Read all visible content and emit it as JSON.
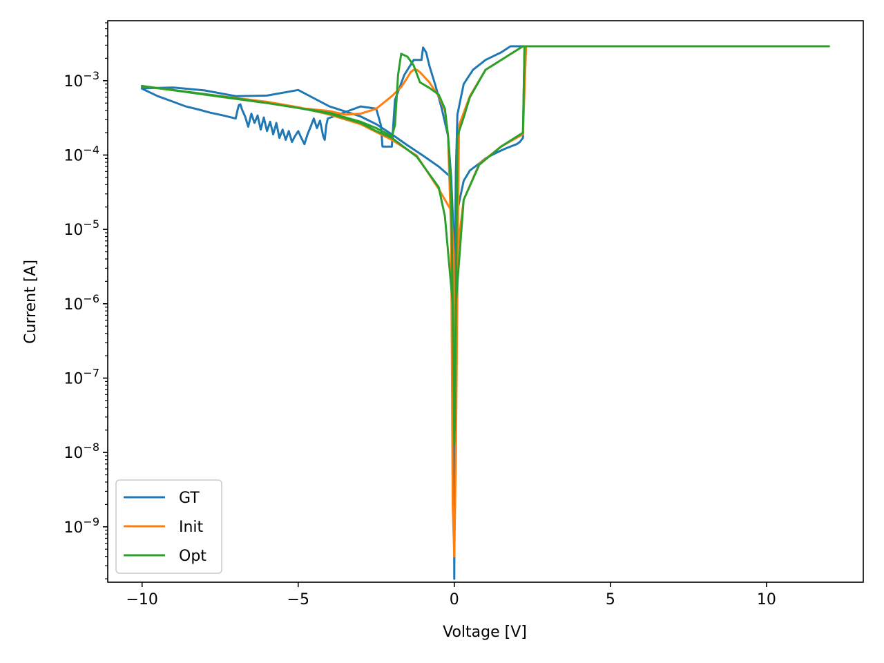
{
  "chart_data": {
    "type": "line",
    "xlabel": "Voltage [V]",
    "ylabel": "Current [A]",
    "yscale": "log",
    "xlim": [
      -11.1,
      13.1
    ],
    "ylim": [
      1.8e-10,
      0.0064
    ],
    "x_ticks": [
      -10,
      -5,
      0,
      5,
      10
    ],
    "x_tick_labels": [
      "−10",
      "−5",
      "0",
      "5",
      "10"
    ],
    "y_ticks": [
      1e-09,
      1e-08,
      1e-07,
      1e-06,
      1e-05,
      0.0001,
      0.001
    ],
    "y_tick_exponents": [
      "−9",
      "−8",
      "−7",
      "−6",
      "−5",
      "−4",
      "−3"
    ],
    "y_tick_base": "10",
    "grid": false,
    "legend_position": "bottom-left",
    "series": [
      {
        "name": "GT",
        "color": "#1f77b4",
        "x": [
          -10,
          -9.5,
          -9,
          -8.6,
          -8.2,
          -7.8,
          -7.4,
          -7,
          -6.95,
          -6.9,
          -6.85,
          -6.8,
          -6.7,
          -6.6,
          -6.5,
          -6.4,
          -6.3,
          -6.2,
          -6.1,
          -6,
          -5.9,
          -5.8,
          -5.7,
          -5.6,
          -5.5,
          -5.4,
          -5.3,
          -5.2,
          -5.1,
          -5,
          -4.9,
          -4.8,
          -4.7,
          -4.6,
          -4.5,
          -4.4,
          -4.3,
          -4.2,
          -4.15,
          -4.1,
          -4.05,
          -3,
          -2.5,
          -2.35,
          -2.3,
          -2.2,
          -2.1,
          -2,
          -1.9,
          -1.6,
          -1.3,
          -1.05,
          -1,
          -0.9,
          -0.8,
          -0.6,
          -0.4,
          -0.2,
          -0.1,
          -0.05,
          -0.02,
          0,
          0.02,
          0.05,
          0.1,
          0.3,
          0.6,
          1,
          1.5,
          1.8,
          2.1,
          2.2,
          2.25,
          2.2,
          2.1,
          2,
          1.7,
          1.5,
          1.2,
          1,
          0.8,
          0.5,
          0.3,
          0.1,
          0,
          -0.1,
          -0.5,
          -1,
          -1.5,
          -2,
          -2.5,
          -3,
          -4,
          -5,
          -6,
          -7,
          -8,
          -9,
          -10
        ],
        "y": [
          0.00078,
          0.00062,
          0.00052,
          0.00045,
          0.00041,
          0.00037,
          0.00034,
          0.00031,
          0.00039,
          0.00047,
          0.00048,
          0.00041,
          0.00033,
          0.00024,
          0.00036,
          0.00027,
          0.00034,
          0.00022,
          0.00032,
          0.00021,
          0.00028,
          0.00019,
          0.00027,
          0.00017,
          0.00022,
          0.00016,
          0.00021,
          0.00015,
          0.00018,
          0.00021,
          0.00017,
          0.00014,
          0.00019,
          0.00024,
          0.00031,
          0.00023,
          0.00029,
          0.00018,
          0.00016,
          0.00025,
          0.00031,
          0.00045,
          0.00042,
          0.00025,
          0.00013,
          0.00013,
          0.00013,
          0.00013,
          0.00055,
          0.0012,
          0.0019,
          0.0019,
          0.0028,
          0.0024,
          0.0016,
          0.00085,
          0.00042,
          0.00018,
          5e-05,
          6e-06,
          1e-07,
          2e-10,
          3e-06,
          6e-05,
          0.00035,
          0.0009,
          0.0014,
          0.0019,
          0.0024,
          0.0029,
          0.0029,
          0.0029,
          0.0029,
          0.00017,
          0.00015,
          0.00014,
          0.000125,
          0.000115,
          0.0001,
          9e-05,
          7.7e-05,
          6.2e-05,
          4.5e-05,
          1.8e-05,
          5e-06,
          5e-05,
          7e-05,
          9.8e-05,
          0.000135,
          0.00019,
          0.00026,
          0.00033,
          0.00045,
          0.00075,
          0.00063,
          0.00062,
          0.00074,
          0.00081,
          0.00079
        ]
      },
      {
        "name": "Init",
        "color": "#ff7f0e",
        "x": [
          -10,
          -9,
          -8,
          -7,
          -6,
          -5,
          -4,
          -3.5,
          -3,
          -2.5,
          -2,
          -1.7,
          -1.5,
          -1.4,
          -1.3,
          -1.2,
          -1.1,
          -0.8,
          -0.5,
          -0.3,
          -0.2,
          -0.1,
          -0.05,
          0,
          0.05,
          0.15,
          0.5,
          1,
          2.2,
          2.3,
          2.35,
          3,
          12,
          2.3,
          2.2,
          1.5,
          0.8,
          0.3,
          0.1,
          0.02,
          -0.02,
          -0.1,
          -0.5,
          -1.2,
          -2,
          -3,
          -4,
          -5,
          -6,
          -8,
          -10
        ],
        "y": [
          0.00084,
          0.00075,
          0.00065,
          0.00057,
          0.0005,
          0.00043,
          0.00039,
          0.00035,
          0.00036,
          0.00042,
          0.00062,
          0.00082,
          0.0011,
          0.0013,
          0.0014,
          0.0014,
          0.0013,
          0.00095,
          0.00062,
          0.0004,
          0.00018,
          8e-06,
          2e-09,
          4e-10,
          1e-08,
          0.00025,
          0.00062,
          0.0014,
          0.0029,
          0.0029,
          0.0029,
          0.0029,
          0.0029,
          0.0029,
          0.00019,
          0.00013,
          7.6e-05,
          2.5e-05,
          5e-06,
          6e-08,
          5e-06,
          1.8e-05,
          3.5e-05,
          9.8e-05,
          0.00016,
          0.00026,
          0.00035,
          0.00044,
          0.00052,
          0.00066,
          0.00084
        ]
      },
      {
        "name": "Opt",
        "color": "#2ca02c",
        "x": [
          -10,
          -9,
          -8,
          -7,
          -6,
          -5,
          -4,
          -3,
          -2.5,
          -2,
          -1.9,
          -1.8,
          -1.7,
          -1.5,
          -1.3,
          -1.1,
          -0.8,
          -0.5,
          -0.3,
          -0.2,
          -0.1,
          -0.02,
          0,
          0.02,
          0.1,
          0.3,
          0.5,
          1,
          2.2,
          2.25,
          12,
          2.25,
          2.2,
          1.5,
          0.8,
          0.3,
          0.05,
          0,
          -0.05,
          -0.3,
          -0.5,
          -1.2,
          -2,
          -2.5,
          -3,
          -4,
          -5,
          -6,
          -8,
          -10
        ],
        "y": [
          0.00084,
          0.00075,
          0.00066,
          0.00058,
          0.0005,
          0.00043,
          0.00037,
          0.00028,
          0.00023,
          0.00018,
          0.00025,
          0.0012,
          0.0023,
          0.0021,
          0.0016,
          0.00095,
          0.0008,
          0.00065,
          0.00042,
          0.00018,
          3e-05,
          1e-07,
          1.3e-08,
          3e-08,
          0.00018,
          0.00032,
          0.0006,
          0.0014,
          0.0029,
          0.0029,
          0.0029,
          0.0029,
          0.0002,
          0.00013,
          7.4e-05,
          2.5e-05,
          1e-06,
          2e-08,
          1e-06,
          1.5e-05,
          3.7e-05,
          9.5e-05,
          0.00017,
          0.00021,
          0.00027,
          0.00036,
          0.00043,
          0.0005,
          0.00065,
          0.00085
        ]
      }
    ]
  }
}
